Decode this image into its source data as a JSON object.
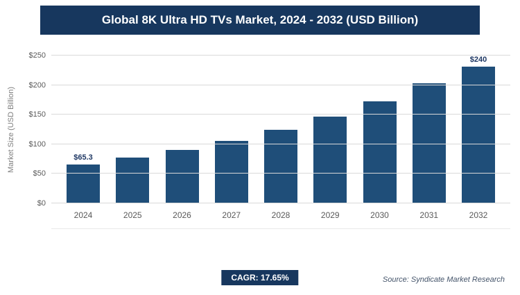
{
  "header": {
    "title": "Global 8K Ultra HD TVs Market, 2024 - 2032 (USD Billion)"
  },
  "chart_data": {
    "type": "bar",
    "title": "Global 8K Ultra HD TVs Market, 2024 - 2032 (USD Billion)",
    "categories": [
      "2024",
      "2025",
      "2026",
      "2027",
      "2028",
      "2029",
      "2030",
      "2031",
      "2032"
    ],
    "values": [
      65.3,
      77,
      90,
      106,
      125,
      147,
      172,
      203,
      240
    ],
    "bar_labels": [
      "$65.3",
      "",
      "",
      "",
      "",
      "",
      "",
      "",
      "$240"
    ],
    "xlabel": "",
    "ylabel": "Market Size (USD Billion)",
    "ylim": [
      0,
      250
    ],
    "yticks": [
      0,
      50,
      100,
      150,
      200,
      250
    ],
    "ytick_labels": [
      "$0",
      "$50",
      "$100",
      "$150",
      "$200",
      "$250"
    ],
    "grid": true,
    "legend": false,
    "bar_color": "#1f4e79"
  },
  "footer": {
    "cagr": "CAGR: 17.65%",
    "source": "Source: Syndicate Market Research"
  },
  "colors": {
    "banner": "#17375e",
    "bar": "#1f4e79",
    "badge": "#17375e"
  }
}
